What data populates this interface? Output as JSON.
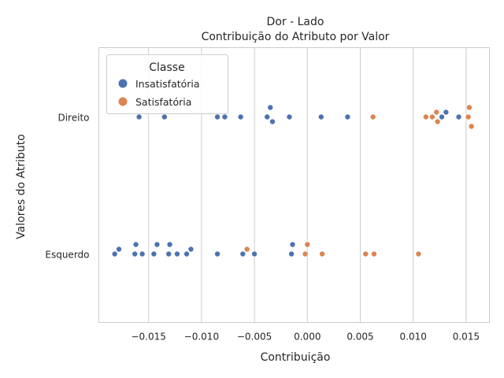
{
  "chart_data": {
    "type": "scatter",
    "title": "Dor - Lado",
    "subtitle": "Contribuição do Atributo por Valor",
    "xlabel": "Contribuição",
    "ylabel": "Valores do Atributo",
    "categories": [
      "Direito",
      "Esquerdo"
    ],
    "xlim": [
      -0.0197,
      0.0172
    ],
    "xticks": [
      -0.015,
      -0.01,
      -0.005,
      0.0,
      0.005,
      0.01,
      0.015
    ],
    "xtick_labels": [
      "−0.015",
      "−0.010",
      "−0.005",
      "0.000",
      "0.005",
      "0.010",
      "0.015"
    ],
    "grid": "vertical",
    "legend": {
      "title": "Classe",
      "placement": "top-left"
    },
    "series": [
      {
        "name": "Insatisfatória",
        "color": "#4c72b0",
        "points": [
          {
            "category": "Direito",
            "x": -0.0159
          },
          {
            "category": "Direito",
            "x": -0.0135
          },
          {
            "category": "Direito",
            "x": -0.0085
          },
          {
            "category": "Direito",
            "x": -0.0078
          },
          {
            "category": "Direito",
            "x": -0.0063
          },
          {
            "category": "Direito",
            "x": -0.0038
          },
          {
            "category": "Direito",
            "x": -0.0035
          },
          {
            "category": "Direito",
            "x": -0.0033
          },
          {
            "category": "Direito",
            "x": -0.0017
          },
          {
            "category": "Direito",
            "x": 0.0013
          },
          {
            "category": "Direito",
            "x": 0.0038
          },
          {
            "category": "Direito",
            "x": 0.0127
          },
          {
            "category": "Direito",
            "x": 0.0131
          },
          {
            "category": "Direito",
            "x": 0.0143
          },
          {
            "category": "Esquerdo",
            "x": -0.0182
          },
          {
            "category": "Esquerdo",
            "x": -0.0178
          },
          {
            "category": "Esquerdo",
            "x": -0.0163
          },
          {
            "category": "Esquerdo",
            "x": -0.0162
          },
          {
            "category": "Esquerdo",
            "x": -0.0156
          },
          {
            "category": "Esquerdo",
            "x": -0.0145
          },
          {
            "category": "Esquerdo",
            "x": -0.0142
          },
          {
            "category": "Esquerdo",
            "x": -0.0131
          },
          {
            "category": "Esquerdo",
            "x": -0.013
          },
          {
            "category": "Esquerdo",
            "x": -0.0123
          },
          {
            "category": "Esquerdo",
            "x": -0.0114
          },
          {
            "category": "Esquerdo",
            "x": -0.011
          },
          {
            "category": "Esquerdo",
            "x": -0.0085
          },
          {
            "category": "Esquerdo",
            "x": -0.0061
          },
          {
            "category": "Esquerdo",
            "x": -0.005
          },
          {
            "category": "Esquerdo",
            "x": -0.0015
          },
          {
            "category": "Esquerdo",
            "x": -0.0014
          }
        ]
      },
      {
        "name": "Satisfatória",
        "color": "#dd8452",
        "points": [
          {
            "category": "Direito",
            "x": 0.0062
          },
          {
            "category": "Direito",
            "x": 0.0112
          },
          {
            "category": "Direito",
            "x": 0.0118
          },
          {
            "category": "Direito",
            "x": 0.0122
          },
          {
            "category": "Direito",
            "x": 0.0123
          },
          {
            "category": "Direito",
            "x": 0.0152
          },
          {
            "category": "Direito",
            "x": 0.0153
          },
          {
            "category": "Direito",
            "x": 0.0155
          },
          {
            "category": "Esquerdo",
            "x": -0.0057
          },
          {
            "category": "Esquerdo",
            "x": -0.0002
          },
          {
            "category": "Esquerdo",
            "x": 0.0
          },
          {
            "category": "Esquerdo",
            "x": 0.0014
          },
          {
            "category": "Esquerdo",
            "x": 0.0055
          },
          {
            "category": "Esquerdo",
            "x": 0.0063
          },
          {
            "category": "Esquerdo",
            "x": 0.0105
          }
        ]
      }
    ]
  }
}
